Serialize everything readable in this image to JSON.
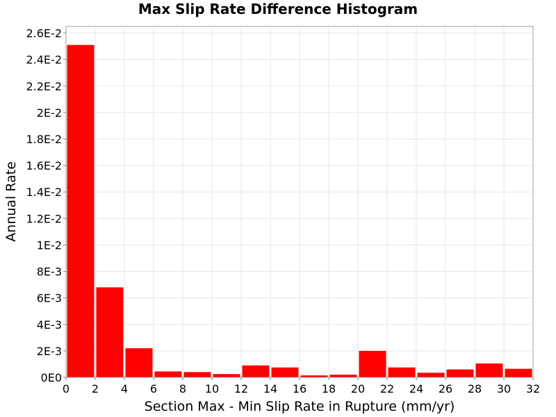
{
  "chart_data": {
    "type": "bar",
    "title": "Max Slip Rate Difference Histogram",
    "xlabel": "Section Max - Min Slip Rate in Rupture (mm/yr)",
    "ylabel": "Annual Rate",
    "xlim": [
      0,
      32
    ],
    "ylim": [
      0,
      0.0265
    ],
    "bin_width": 2,
    "grid": true,
    "bar_color": "#ff0000",
    "x_ticks": [
      0,
      2,
      4,
      6,
      8,
      10,
      12,
      14,
      16,
      18,
      20,
      22,
      24,
      26,
      28,
      30,
      32
    ],
    "x_tick_labels": [
      "0",
      "2",
      "4",
      "6",
      "8",
      "10",
      "12",
      "14",
      "16",
      "18",
      "20",
      "22",
      "24",
      "26",
      "28",
      "30",
      "32"
    ],
    "y_ticks": [
      0,
      0.002,
      0.004,
      0.006,
      0.008,
      0.01,
      0.012,
      0.014,
      0.016,
      0.018,
      0.02,
      0.022,
      0.024,
      0.026
    ],
    "y_tick_labels": [
      "0E0",
      "2E-3",
      "4E-3",
      "6E-3",
      "8E-3",
      "1E-2",
      "1.2E-2",
      "1.4E-2",
      "1.6E-2",
      "1.8E-2",
      "2E-2",
      "2.2E-2",
      "2.4E-2",
      "2.6E-2"
    ],
    "bins": [
      1,
      3,
      5,
      7,
      9,
      11,
      13,
      15,
      17,
      19,
      21,
      23,
      25,
      27,
      29,
      31
    ],
    "values": [
      0.0251,
      0.0068,
      0.0022,
      0.00045,
      0.0004,
      0.00025,
      0.0009,
      0.00075,
      0.00015,
      0.0002,
      0.002,
      0.00075,
      0.00035,
      0.0006,
      0.00105,
      0.00065
    ]
  }
}
